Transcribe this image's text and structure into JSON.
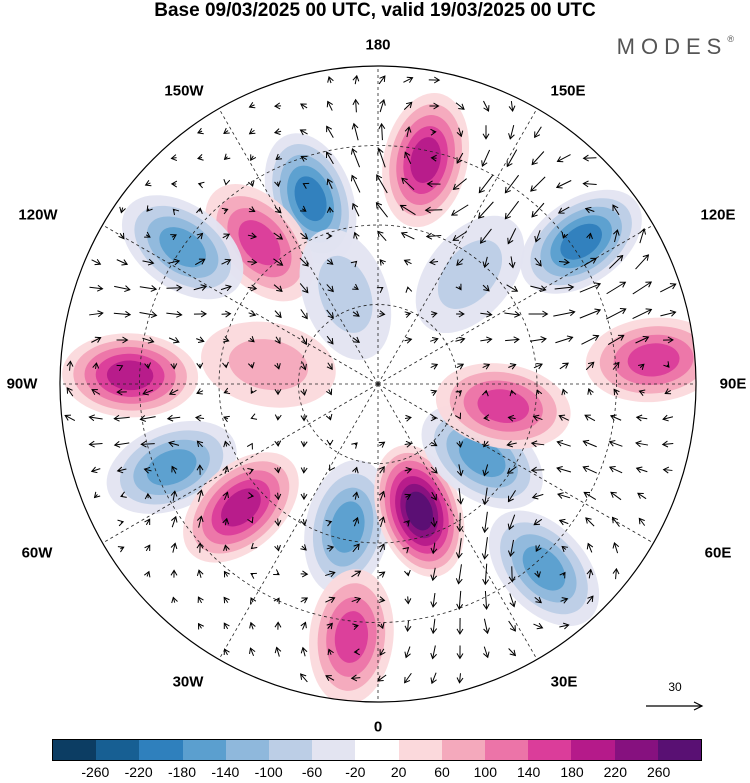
{
  "title": "Base 09/03/2025 00 UTC, valid 19/03/2025 00 UTC",
  "brand": "MODES",
  "brand_mark": "®",
  "longitude_labels": {
    "top": "180",
    "top_left": "150W",
    "top_right": "150E",
    "upper_left": "120W",
    "upper_right": "120E",
    "left": "90W",
    "right": "90E",
    "lower_left": "60W",
    "lower_right": "60E",
    "bottom_left": "30W",
    "bottom_right": "30E",
    "bottom": "0"
  },
  "reference_vector": {
    "label": "30"
  },
  "colorbar": {
    "colors": [
      "#0c3d63",
      "#175f93",
      "#2f80bd",
      "#5b9fcf",
      "#8fb8dc",
      "#bccee6",
      "#e3e4f1",
      "#ffffff",
      "#fbd9dc",
      "#f4a9bc",
      "#ec74a8",
      "#db3d9a",
      "#b51a8a",
      "#86117f",
      "#591073"
    ],
    "ticks": [
      "-260",
      "-220",
      "-180",
      "-140",
      "-100",
      "-60",
      "-20",
      "20",
      "60",
      "100",
      "140",
      "180",
      "220",
      "260"
    ]
  },
  "map": {
    "projection": "north-polar-stereographic",
    "field": "anomaly",
    "anomaly_centers": [
      {
        "lon_deg": 168,
        "r": 0.72,
        "value": 190
      },
      {
        "lon_deg": -160,
        "r": 0.62,
        "value": -190
      },
      {
        "lon_deg": -140,
        "r": 0.58,
        "value": 160
      },
      {
        "lon_deg": -125,
        "r": 0.75,
        "value": -140
      },
      {
        "lon_deg": -92,
        "r": 0.78,
        "value": 190
      },
      {
        "lon_deg": -68,
        "r": 0.7,
        "value": -150
      },
      {
        "lon_deg": -48,
        "r": 0.58,
        "value": 180
      },
      {
        "lon_deg": -12,
        "r": 0.46,
        "value": -170
      },
      {
        "lon_deg": 18,
        "r": 0.42,
        "value": 260
      },
      {
        "lon_deg": -6,
        "r": 0.8,
        "value": 170
      },
      {
        "lon_deg": 42,
        "r": 0.78,
        "value": -150
      },
      {
        "lon_deg": 55,
        "r": 0.4,
        "value": -170
      },
      {
        "lon_deg": 80,
        "r": 0.4,
        "value": 140
      },
      {
        "lon_deg": 95,
        "r": 0.87,
        "value": 150
      },
      {
        "lon_deg": 125,
        "r": 0.78,
        "value": -200
      },
      {
        "lon_deg": 140,
        "r": 0.45,
        "value": -60
      },
      {
        "lon_deg": -100,
        "r": 0.35,
        "value": 60
      },
      {
        "lon_deg": -160,
        "r": 0.3,
        "value": -60
      }
    ]
  }
}
